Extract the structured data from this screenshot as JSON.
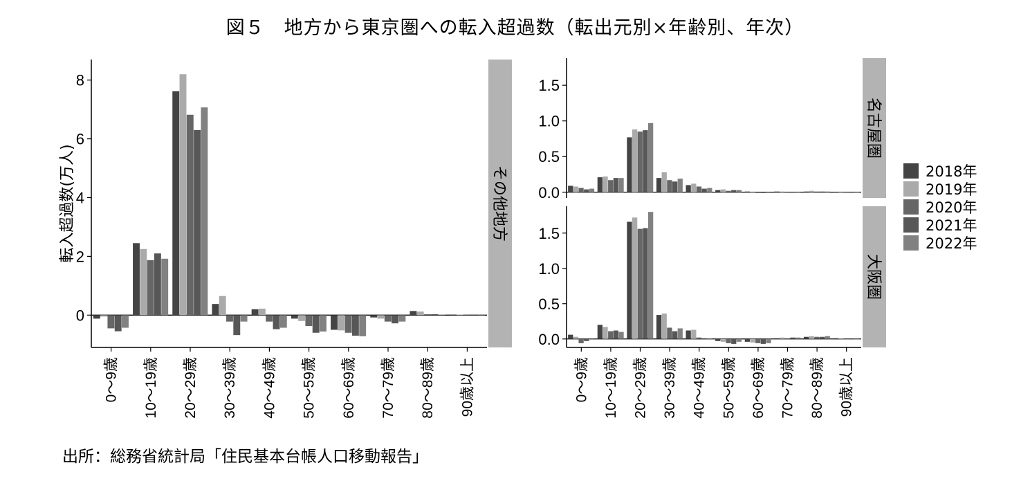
{
  "title": "図５　地方から東京圏への転入超過数（転出元別×年齢別、年次）",
  "source": "出所：総務省統計局「住民基本台帳人口移動報告」",
  "colors": {
    "2018年": "#444444",
    "2019年": "#aaaaaa",
    "2020年": "#666666",
    "2021年": "#575757",
    "2022年": "#818181",
    "strip": "#b3b3b3"
  },
  "chart_data": [
    {
      "type": "bar",
      "panel": "その他地方",
      "ylabel": "転入超過数(万人)",
      "xlabel": "",
      "ylim": [
        -1.1,
        8.7
      ],
      "yticks": [
        0,
        2,
        4,
        6,
        8
      ],
      "categories": [
        "0～9歳",
        "10～19歳",
        "20～29歳",
        "30～39歳",
        "40～49歳",
        "50～59歳",
        "60～69歳",
        "70～79歳",
        "80～89歳",
        "90歳以上"
      ],
      "series": [
        {
          "name": "2018年",
          "values": [
            -0.12,
            2.45,
            7.62,
            0.38,
            0.2,
            -0.12,
            -0.5,
            -0.08,
            0.14,
            0.02
          ]
        },
        {
          "name": "2019年",
          "values": [
            -0.05,
            2.25,
            8.2,
            0.65,
            0.22,
            -0.2,
            -0.52,
            -0.12,
            0.12,
            0.02
          ]
        },
        {
          "name": "2020年",
          "values": [
            -0.45,
            1.87,
            6.82,
            -0.22,
            -0.22,
            -0.37,
            -0.6,
            -0.22,
            0.03,
            0.01
          ]
        },
        {
          "name": "2021年",
          "values": [
            -0.55,
            2.1,
            6.3,
            -0.68,
            -0.48,
            -0.6,
            -0.7,
            -0.28,
            0.03,
            0.01
          ]
        },
        {
          "name": "2022年",
          "values": [
            -0.43,
            1.92,
            7.07,
            -0.22,
            -0.43,
            -0.56,
            -0.72,
            -0.22,
            0.02,
            0.01
          ]
        }
      ]
    },
    {
      "type": "bar",
      "panel": "名古屋圏",
      "ylim": [
        -0.08,
        1.88
      ],
      "yticks": [
        0.0,
        0.5,
        1.0,
        1.5
      ],
      "categories": [
        "0～9歳",
        "10～19歳",
        "20～29歳",
        "30～39歳",
        "40～49歳",
        "50～59歳",
        "60～69歳",
        "70～79歳",
        "80～89歳",
        "90歳以上"
      ],
      "series": [
        {
          "name": "2018年",
          "values": [
            0.09,
            0.21,
            0.77,
            0.2,
            0.1,
            0.03,
            0.01,
            0.01,
            0.01,
            0.0
          ]
        },
        {
          "name": "2019年",
          "values": [
            0.08,
            0.22,
            0.88,
            0.28,
            0.12,
            0.04,
            0.0,
            0.01,
            0.02,
            0.0
          ]
        },
        {
          "name": "2020年",
          "values": [
            0.06,
            0.17,
            0.85,
            0.17,
            0.08,
            0.02,
            -0.01,
            0.0,
            0.01,
            0.0
          ]
        },
        {
          "name": "2021年",
          "values": [
            0.04,
            0.2,
            0.87,
            0.15,
            0.05,
            0.03,
            -0.01,
            0.0,
            0.01,
            0.0
          ]
        },
        {
          "name": "2022年",
          "values": [
            0.05,
            0.2,
            0.97,
            0.19,
            0.06,
            0.03,
            -0.01,
            0.0,
            0.01,
            0.0
          ]
        }
      ]
    },
    {
      "type": "bar",
      "panel": "大阪圏",
      "ylim": [
        -0.12,
        1.88
      ],
      "yticks": [
        0.0,
        0.5,
        1.0,
        1.5
      ],
      "categories": [
        "0～9歳",
        "10～19歳",
        "20～29歳",
        "30～39歳",
        "40～49歳",
        "50～59歳",
        "60～69歳",
        "70～79歳",
        "80～89歳",
        "90歳以上"
      ],
      "series": [
        {
          "name": "2018年",
          "values": [
            0.06,
            0.2,
            1.66,
            0.34,
            0.12,
            -0.03,
            -0.04,
            0.01,
            0.03,
            0.01
          ]
        },
        {
          "name": "2019年",
          "values": [
            0.03,
            0.17,
            1.72,
            0.36,
            0.13,
            -0.04,
            -0.05,
            0.02,
            0.04,
            0.01
          ]
        },
        {
          "name": "2020年",
          "values": [
            -0.06,
            0.11,
            1.56,
            0.16,
            0.02,
            -0.06,
            -0.06,
            0.01,
            0.03,
            0.0
          ]
        },
        {
          "name": "2021年",
          "values": [
            -0.03,
            0.12,
            1.57,
            0.11,
            0.01,
            -0.07,
            -0.07,
            0.02,
            0.03,
            0.0
          ]
        },
        {
          "name": "2022年",
          "values": [
            -0.01,
            0.1,
            1.8,
            0.15,
            0.01,
            -0.04,
            -0.06,
            0.02,
            0.04,
            0.0
          ]
        }
      ]
    }
  ],
  "legend": {
    "placement": "right",
    "items": [
      "2018年",
      "2019年",
      "2020年",
      "2021年",
      "2022年"
    ]
  }
}
